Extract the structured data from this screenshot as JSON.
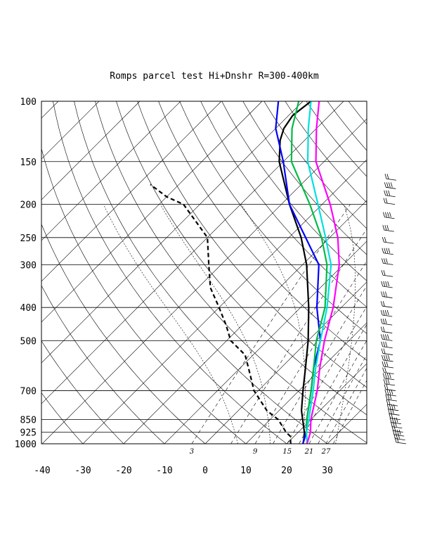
{
  "chart_data": {
    "type": "line",
    "subtype": "skew-T log-P diagram",
    "title": "Romps parcel test Hi+Dnshr R=300-400km",
    "y_scale": "log (pressure)",
    "ylim": [
      1000,
      100
    ],
    "xlim": [
      -40,
      40
    ],
    "pressure_ticks": [
      100,
      150,
      200,
      250,
      300,
      400,
      500,
      700,
      850,
      925,
      1000
    ],
    "temperature_ticks": [
      -40,
      -30,
      -20,
      -10,
      0,
      10,
      20,
      30
    ],
    "mixing_ratio_labels": [
      "3",
      "9",
      "15",
      "21",
      "27"
    ],
    "grid": true,
    "series": [
      {
        "color": "#000000",
        "style": "solid",
        "points": [
          [
            1000,
            24
          ],
          [
            950,
            22.5
          ],
          [
            925,
            21.5
          ],
          [
            850,
            18
          ],
          [
            800,
            15.5
          ],
          [
            700,
            11
          ],
          [
            600,
            6
          ],
          [
            500,
            0
          ],
          [
            400,
            -8
          ],
          [
            300,
            -19
          ],
          [
            250,
            -27
          ],
          [
            200,
            -38
          ],
          [
            150,
            -51
          ],
          [
            130,
            -56
          ],
          [
            120,
            -58
          ],
          [
            110,
            -59
          ],
          [
            100,
            -58
          ]
        ]
      },
      {
        "color": "#000000",
        "style": "dashed",
        "points": [
          [
            1000,
            21
          ],
          [
            950,
            19
          ],
          [
            925,
            17
          ],
          [
            850,
            12
          ],
          [
            800,
            7
          ],
          [
            700,
            -1
          ],
          [
            600,
            -8
          ],
          [
            550,
            -12
          ],
          [
            500,
            -19
          ],
          [
            450,
            -24
          ],
          [
            400,
            -30
          ],
          [
            350,
            -37
          ],
          [
            300,
            -43
          ],
          [
            250,
            -50
          ],
          [
            220,
            -58
          ],
          [
            200,
            -64
          ],
          [
            190,
            -70
          ],
          [
            175,
            -77
          ]
        ]
      },
      {
        "color": "#0000ff",
        "style": "solid",
        "points": [
          [
            1000,
            24
          ],
          [
            925,
            22
          ],
          [
            850,
            19
          ],
          [
            700,
            13
          ],
          [
            600,
            8
          ],
          [
            500,
            3
          ],
          [
            400,
            -6
          ],
          [
            300,
            -16
          ],
          [
            200,
            -38
          ],
          [
            150,
            -50
          ],
          [
            120,
            -60
          ],
          [
            100,
            -66
          ]
        ]
      },
      {
        "color": "#00bb44",
        "style": "solid",
        "points": [
          [
            1000,
            25
          ],
          [
            925,
            22
          ],
          [
            850,
            19
          ],
          [
            700,
            13
          ],
          [
            600,
            8
          ],
          [
            500,
            2
          ],
          [
            400,
            -4
          ],
          [
            300,
            -14
          ],
          [
            250,
            -22
          ],
          [
            200,
            -33
          ],
          [
            150,
            -48
          ],
          [
            120,
            -56
          ],
          [
            100,
            -61
          ]
        ]
      },
      {
        "color": "#00e0e0",
        "style": "solid",
        "points": [
          [
            1000,
            25
          ],
          [
            925,
            22
          ],
          [
            850,
            19.5
          ],
          [
            700,
            13.5
          ],
          [
            600,
            8.5
          ],
          [
            500,
            3
          ],
          [
            400,
            -3.5
          ],
          [
            300,
            -13
          ],
          [
            250,
            -21
          ],
          [
            200,
            -31
          ],
          [
            150,
            -44
          ],
          [
            120,
            -52
          ],
          [
            100,
            -58
          ]
        ]
      },
      {
        "color": "#ff00ff",
        "style": "solid",
        "points": [
          [
            1000,
            25
          ],
          [
            925,
            23
          ],
          [
            850,
            20
          ],
          [
            700,
            14.5
          ],
          [
            600,
            9.5
          ],
          [
            500,
            4
          ],
          [
            400,
            -2
          ],
          [
            300,
            -11
          ],
          [
            250,
            -18
          ],
          [
            200,
            -28
          ],
          [
            150,
            -42
          ],
          [
            120,
            -50
          ],
          [
            100,
            -56
          ]
        ]
      }
    ],
    "wind_profile": {
      "pressures": [
        1000,
        975,
        950,
        925,
        900,
        875,
        850,
        825,
        800,
        775,
        750,
        725,
        700,
        675,
        650,
        625,
        600,
        575,
        550,
        525,
        500,
        475,
        450,
        425,
        400,
        375,
        350,
        325,
        300,
        280,
        260,
        240,
        220,
        200,
        190,
        180,
        170
      ],
      "description": "wind barbs along right side of diagram"
    }
  }
}
